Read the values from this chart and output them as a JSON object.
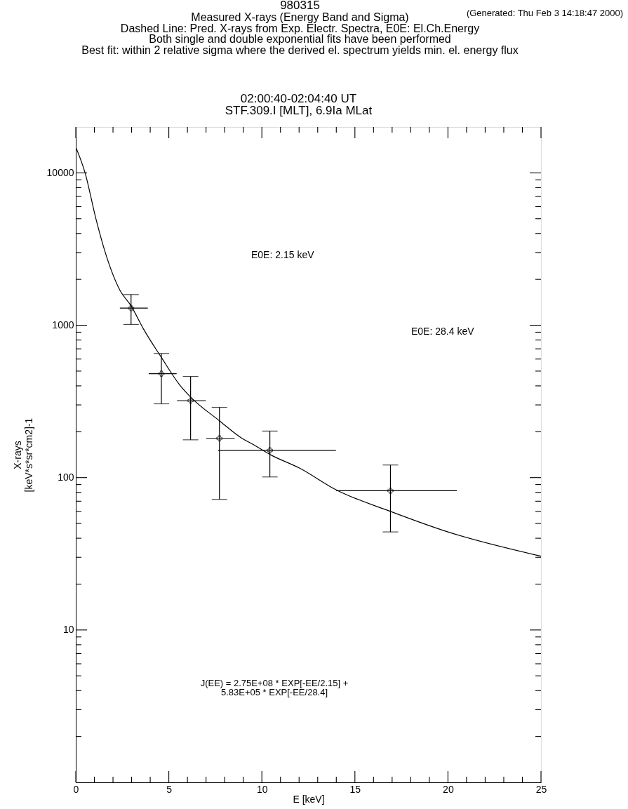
{
  "chart_data": {
    "type": "line",
    "title": "980315",
    "subtitle": "Measured X-rays (Energy Band and Sigma)\nDashed Line: Pred. X-rays from Exp. Electr. Spectra, E0E: El.Ch.Energy\nBoth single and double exponential fits have been performed\nBest fit: within 2 relative sigma where the derived el. spectrum yields min. el. energy flux",
    "annotations": [
      "(Generated: Thu Feb  3 14:18:47 2000)",
      "02:00:40-02:04:40 UT\nSTF.309.I [MLT], 6.9Ia MLat",
      "E0E: 2.15 keV",
      "E0E: 28.4 keV",
      "J(EE) = 2.75E+08 * EXP[-EE/2.15] +\n5.83E+05 * EXP[-EE/28.4]"
    ],
    "xlabel": "E [keV]",
    "ylabel": "X-rays\n[keV*s*sr*cm2]-1",
    "log": "y",
    "grid": false,
    "xlim": [
      0,
      25
    ],
    "ylim": [
      1,
      20000
    ],
    "xticks": [
      0,
      {
        "value": 1,
        "label": null
      },
      {
        "value": 2,
        "label": null
      },
      {
        "value": 3,
        "label": null
      },
      {
        "value": 4,
        "label": null
      },
      5,
      {
        "value": 6,
        "label": null
      },
      {
        "value": 7,
        "label": null
      },
      {
        "value": 8,
        "label": null
      },
      {
        "value": 9,
        "label": null
      },
      10,
      {
        "value": 11,
        "label": null
      },
      {
        "value": 12,
        "label": null
      },
      {
        "value": 13,
        "label": null
      },
      {
        "value": 14,
        "label": null
      },
      15,
      {
        "value": 16,
        "label": null
      },
      {
        "value": 17,
        "label": null
      },
      {
        "value": 18,
        "label": null
      },
      {
        "value": 19,
        "label": null
      },
      20,
      {
        "value": 21,
        "label": null
      },
      {
        "value": 22,
        "label": null
      },
      {
        "value": 23,
        "label": null
      },
      {
        "value": 24,
        "label": null
      },
      25
    ],
    "yticks": [
      {
        "value": 2,
        "label": null
      },
      {
        "value": 3,
        "label": null
      },
      {
        "value": 4,
        "label": null
      },
      {
        "value": 5,
        "label": null
      },
      {
        "value": 6,
        "label": null
      },
      {
        "value": 7,
        "label": null
      },
      {
        "value": 8,
        "label": null
      },
      {
        "value": 9,
        "label": null
      },
      10,
      {
        "value": 20,
        "label": null
      },
      {
        "value": 30,
        "label": null
      },
      {
        "value": 40,
        "label": null
      },
      {
        "value": 50,
        "label": null
      },
      {
        "value": 60,
        "label": null
      },
      {
        "value": 70,
        "label": null
      },
      {
        "value": 80,
        "label": null
      },
      {
        "value": 90,
        "label": null
      },
      100,
      {
        "value": 200,
        "label": null
      },
      {
        "value": 300,
        "label": null
      },
      {
        "value": 400,
        "label": null
      },
      {
        "value": 500,
        "label": null
      },
      {
        "value": 600,
        "label": null
      },
      {
        "value": 700,
        "label": null
      },
      {
        "value": 800,
        "label": null
      },
      {
        "value": 900,
        "label": null
      },
      1000,
      {
        "value": 2000,
        "label": null
      },
      {
        "value": 3000,
        "label": null
      },
      {
        "value": 4000,
        "label": null
      },
      {
        "value": 5000,
        "label": null
      },
      {
        "value": 6000,
        "label": null
      },
      {
        "value": 7000,
        "label": null
      },
      {
        "value": 8000,
        "label": null
      },
      {
        "value": 9000,
        "label": null
      },
      10000
    ],
    "series": [
      {
        "type": "scatter",
        "marker": "cross",
        "color": "#000000",
        "x": [
          2.97,
          4.6,
          6.17,
          7.72,
          10.43,
          16.91
        ],
        "values": [
          1295,
          481,
          320,
          181,
          151,
          82
        ],
        "errors": [
          [
            1012,
            1590
          ],
          [
            305,
            653
          ],
          [
            177,
            461
          ],
          [
            72,
            289
          ],
          [
            101,
            202
          ],
          [
            44,
            121
          ]
        ],
        "xerrors": [
          [
            2.37,
            3.87
          ],
          [
            3.92,
            5.42
          ],
          [
            5.44,
            6.99
          ],
          [
            7.01,
            8.54
          ],
          [
            7.64,
            13.98
          ],
          [
            14.0,
            20.48
          ]
        ]
      },
      {
        "line_style": "solid",
        "color": "#000000",
        "x": [
          0,
          0.49,
          1.08,
          1.55,
          2.37,
          2.97,
          3.66,
          4.6,
          5.59,
          6.17,
          7.72,
          8.82,
          9.68,
          10.43,
          12.05,
          14.0,
          16.91,
          20.0,
          25
        ],
        "values": [
          14760,
          10100,
          5010,
          3100,
          1700,
          1340,
          935,
          615,
          405,
          338,
          236,
          185,
          161,
          142,
          115,
          83,
          60,
          44,
          30.5
        ]
      }
    ]
  }
}
